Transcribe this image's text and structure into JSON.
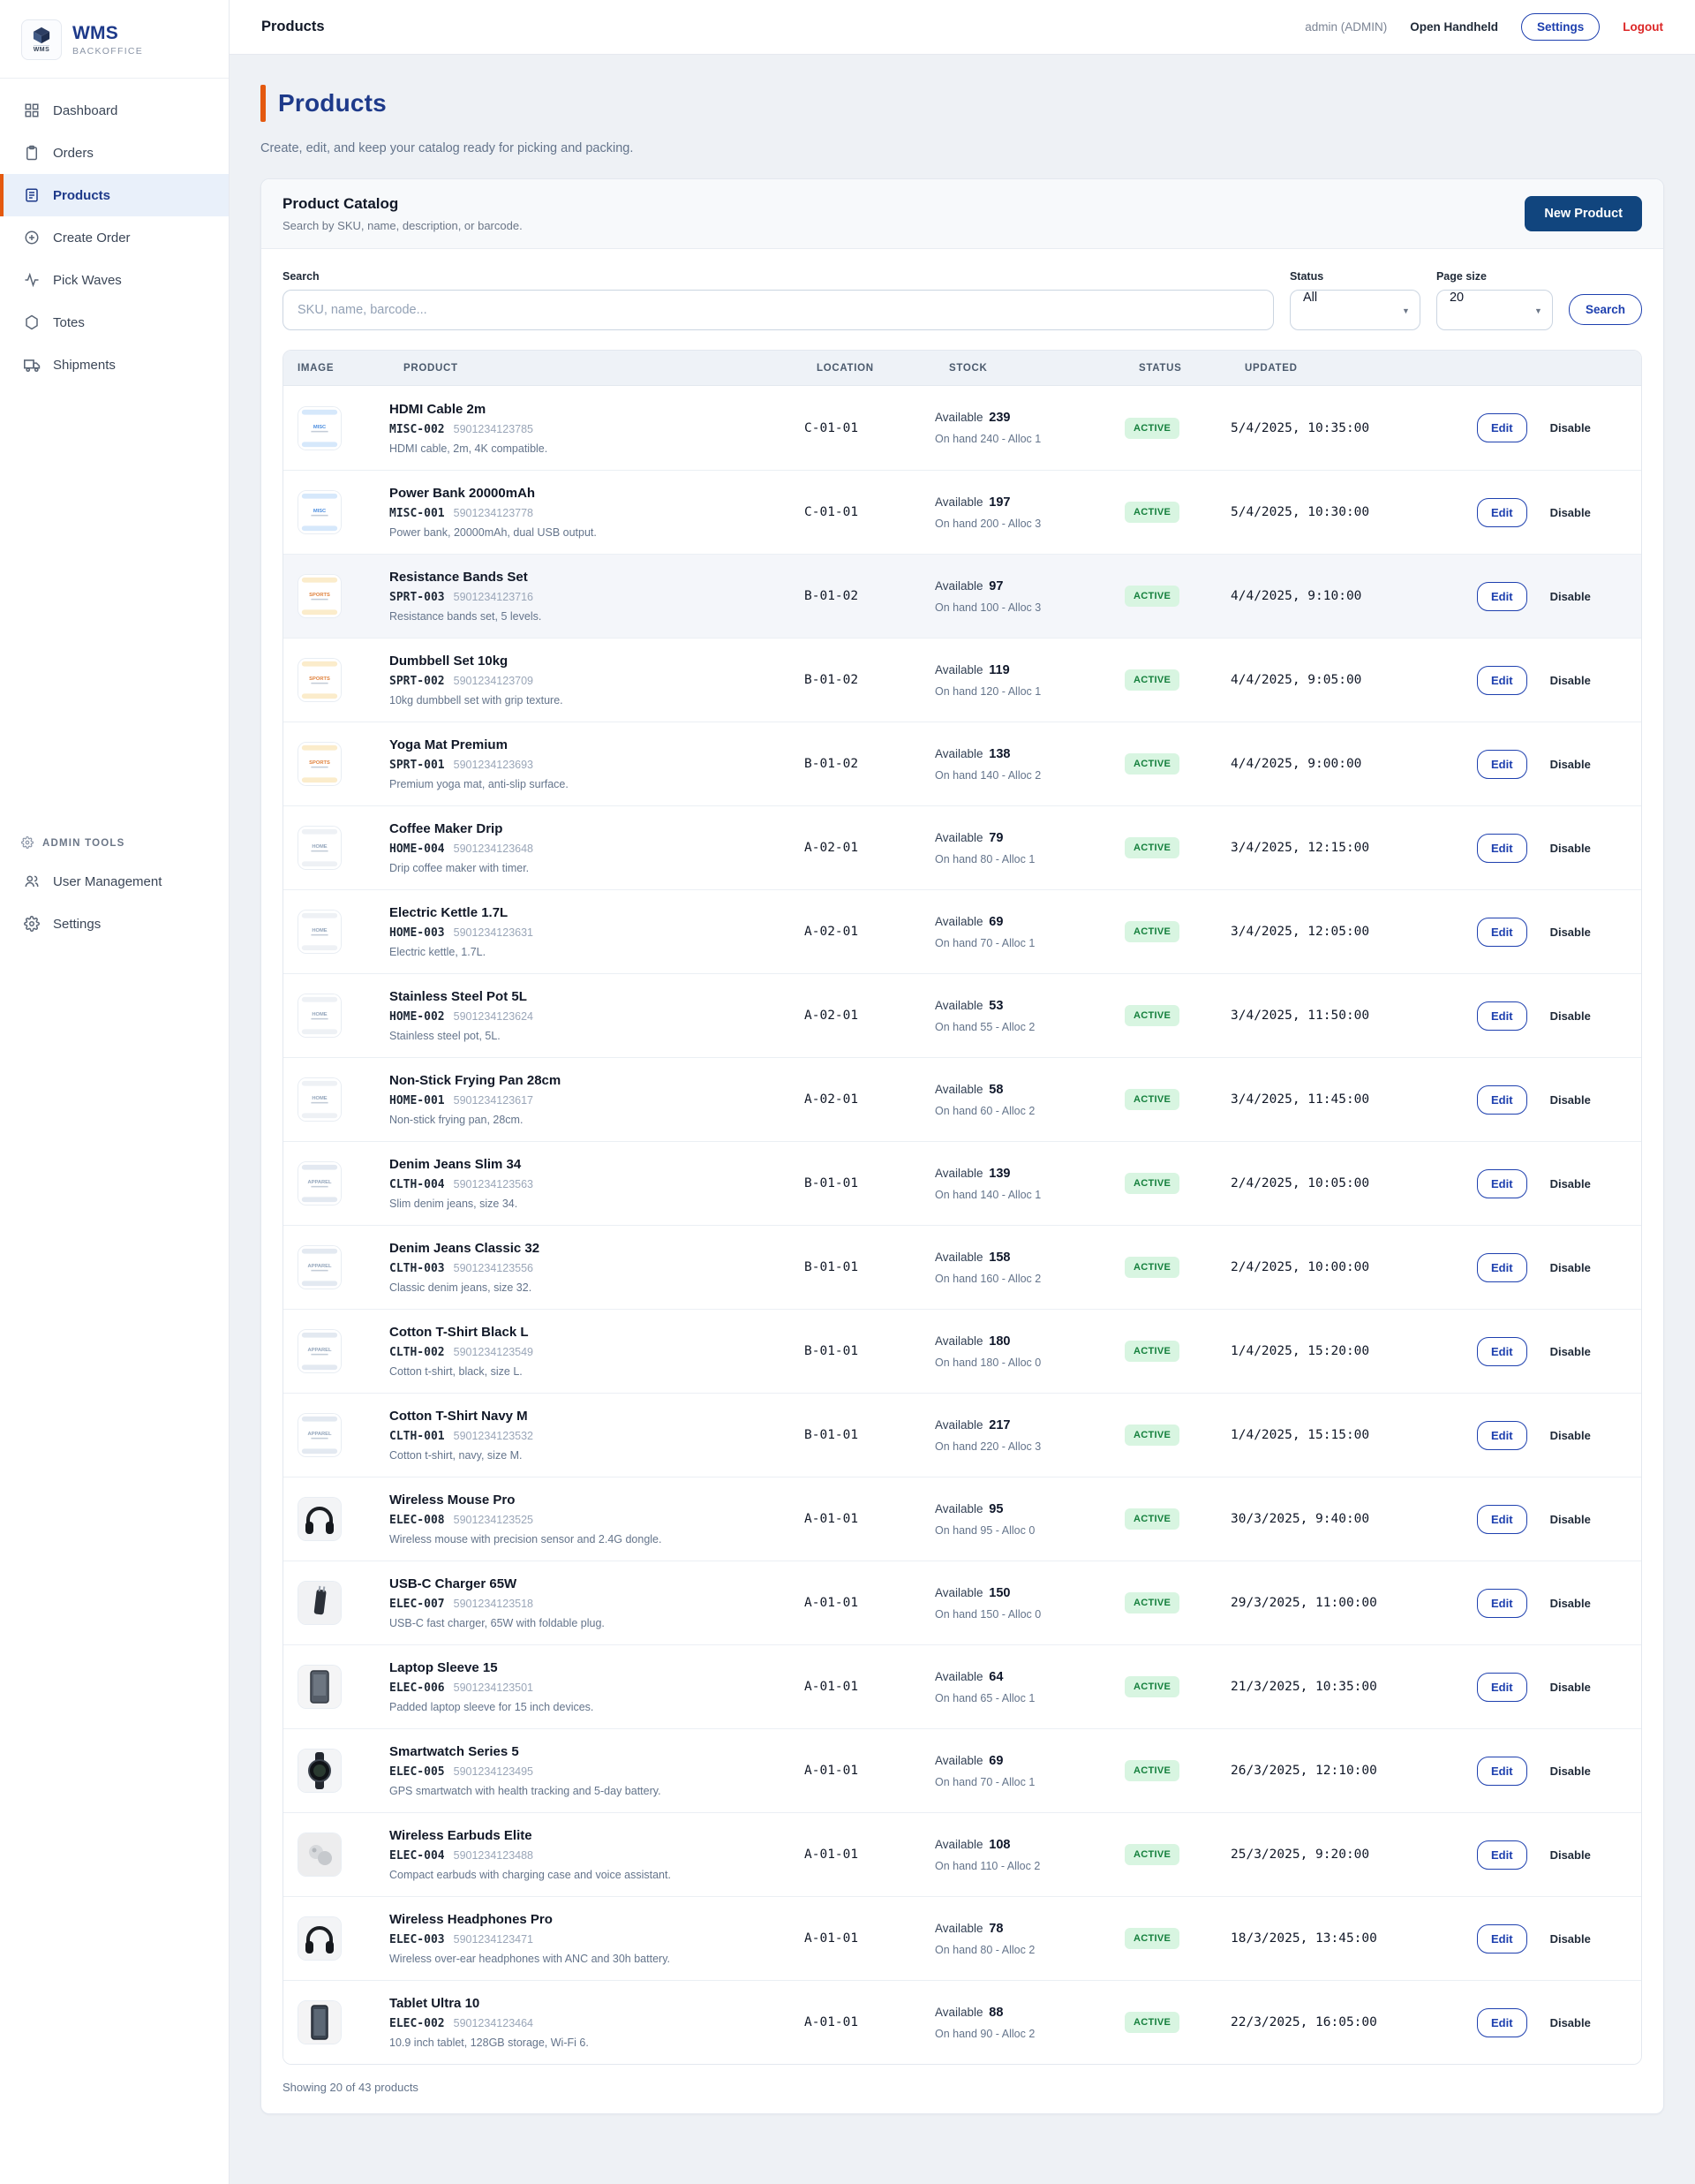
{
  "app": {
    "brand": "WMS",
    "brand_sub": "BACKOFFICE",
    "brand_icon_label": "WMS"
  },
  "topbar": {
    "title": "Products",
    "user": "admin (ADMIN)",
    "open_handheld": "Open Handheld",
    "settings": "Settings",
    "logout": "Logout"
  },
  "sidebar": {
    "items": [
      {
        "label": "Dashboard",
        "icon": "grid",
        "active": false
      },
      {
        "label": "Orders",
        "icon": "clipboard",
        "active": false
      },
      {
        "label": "Products",
        "icon": "document",
        "active": true
      },
      {
        "label": "Create Order",
        "icon": "plus-circle",
        "active": false
      },
      {
        "label": "Pick Waves",
        "icon": "activity",
        "active": false
      },
      {
        "label": "Totes",
        "icon": "hexagon",
        "active": false
      },
      {
        "label": "Shipments",
        "icon": "truck",
        "active": false
      }
    ],
    "admin_section_label": "ADMIN TOOLS",
    "admin_items": [
      {
        "label": "User Management",
        "icon": "users",
        "active": false
      },
      {
        "label": "Settings",
        "icon": "gear",
        "active": false
      }
    ]
  },
  "page": {
    "title": "Products",
    "subtitle": "Create, edit, and keep your catalog ready for picking and packing."
  },
  "catalog": {
    "title": "Product Catalog",
    "subtitle": "Search by SKU, name, description, or barcode.",
    "new_product_button": "New Product",
    "filters": {
      "search_label": "Search",
      "search_placeholder": "SKU, name, barcode...",
      "status_label": "Status",
      "status_value": "All",
      "page_size_label": "Page size",
      "page_size_value": "20",
      "search_button": "Search"
    },
    "columns": [
      "IMAGE",
      "PRODUCT",
      "LOCATION",
      "STOCK",
      "STATUS",
      "UPDATED"
    ],
    "stock_labels": {
      "available": "Available",
      "on_hand": "On hand",
      "alloc": "Alloc"
    },
    "actions": {
      "edit": "Edit",
      "disable": "Disable"
    },
    "footer": "Showing 20 of 43 products"
  },
  "colors": {
    "accent_orange": "#e4590f",
    "brand_blue": "#1e3a8a",
    "primary_button_blue": "#11457e",
    "active_badge_bg": "#d8f5e1",
    "active_badge_text": "#15803d",
    "logout_red": "#dc2626"
  },
  "products": [
    {
      "name": "HDMI Cable 2m",
      "sku": "MISC-002",
      "barcode": "5901234123785",
      "description": "HDMI cable, 2m, 4K compatible.",
      "location": "C-01-01",
      "available": "239",
      "on_hand": "240",
      "alloc": "1",
      "status": "ACTIVE",
      "updated": "5/4/2025, 10:35:00",
      "thumb": "misc",
      "thumb_label": "MISC",
      "highlighted": false
    },
    {
      "name": "Power Bank 20000mAh",
      "sku": "MISC-001",
      "barcode": "5901234123778",
      "description": "Power bank, 20000mAh, dual USB output.",
      "location": "C-01-01",
      "available": "197",
      "on_hand": "200",
      "alloc": "3",
      "status": "ACTIVE",
      "updated": "5/4/2025, 10:30:00",
      "thumb": "misc",
      "thumb_label": "MISC",
      "highlighted": false
    },
    {
      "name": "Resistance Bands Set",
      "sku": "SPRT-003",
      "barcode": "5901234123716",
      "description": "Resistance bands set, 5 levels.",
      "location": "B-01-02",
      "available": "97",
      "on_hand": "100",
      "alloc": "3",
      "status": "ACTIVE",
      "updated": "4/4/2025, 9:10:00",
      "thumb": "sprt",
      "thumb_label": "SPORTS",
      "highlighted": true
    },
    {
      "name": "Dumbbell Set 10kg",
      "sku": "SPRT-002",
      "barcode": "5901234123709",
      "description": "10kg dumbbell set with grip texture.",
      "location": "B-01-02",
      "available": "119",
      "on_hand": "120",
      "alloc": "1",
      "status": "ACTIVE",
      "updated": "4/4/2025, 9:05:00",
      "thumb": "sprt",
      "thumb_label": "SPORTS",
      "highlighted": false
    },
    {
      "name": "Yoga Mat Premium",
      "sku": "SPRT-001",
      "barcode": "5901234123693",
      "description": "Premium yoga mat, anti-slip surface.",
      "location": "B-01-02",
      "available": "138",
      "on_hand": "140",
      "alloc": "2",
      "status": "ACTIVE",
      "updated": "4/4/2025, 9:00:00",
      "thumb": "sprt",
      "thumb_label": "SPORTS",
      "highlighted": false
    },
    {
      "name": "Coffee Maker Drip",
      "sku": "HOME-004",
      "barcode": "5901234123648",
      "description": "Drip coffee maker with timer.",
      "location": "A-02-01",
      "available": "79",
      "on_hand": "80",
      "alloc": "1",
      "status": "ACTIVE",
      "updated": "3/4/2025, 12:15:00",
      "thumb": "home",
      "thumb_label": "HOME",
      "highlighted": false
    },
    {
      "name": "Electric Kettle 1.7L",
      "sku": "HOME-003",
      "barcode": "5901234123631",
      "description": "Electric kettle, 1.7L.",
      "location": "A-02-01",
      "available": "69",
      "on_hand": "70",
      "alloc": "1",
      "status": "ACTIVE",
      "updated": "3/4/2025, 12:05:00",
      "thumb": "home",
      "thumb_label": "HOME",
      "highlighted": false
    },
    {
      "name": "Stainless Steel Pot 5L",
      "sku": "HOME-002",
      "barcode": "5901234123624",
      "description": "Stainless steel pot, 5L.",
      "location": "A-02-01",
      "available": "53",
      "on_hand": "55",
      "alloc": "2",
      "status": "ACTIVE",
      "updated": "3/4/2025, 11:50:00",
      "thumb": "home",
      "thumb_label": "HOME",
      "highlighted": false
    },
    {
      "name": "Non-Stick Frying Pan 28cm",
      "sku": "HOME-001",
      "barcode": "5901234123617",
      "description": "Non-stick frying pan, 28cm.",
      "location": "A-02-01",
      "available": "58",
      "on_hand": "60",
      "alloc": "2",
      "status": "ACTIVE",
      "updated": "3/4/2025, 11:45:00",
      "thumb": "home",
      "thumb_label": "HOME",
      "highlighted": false
    },
    {
      "name": "Denim Jeans Slim 34",
      "sku": "CLTH-004",
      "barcode": "5901234123563",
      "description": "Slim denim jeans, size 34.",
      "location": "B-01-01",
      "available": "139",
      "on_hand": "140",
      "alloc": "1",
      "status": "ACTIVE",
      "updated": "2/4/2025, 10:05:00",
      "thumb": "clth",
      "thumb_label": "APPAREL",
      "highlighted": false
    },
    {
      "name": "Denim Jeans Classic 32",
      "sku": "CLTH-003",
      "barcode": "5901234123556",
      "description": "Classic denim jeans, size 32.",
      "location": "B-01-01",
      "available": "158",
      "on_hand": "160",
      "alloc": "2",
      "status": "ACTIVE",
      "updated": "2/4/2025, 10:00:00",
      "thumb": "clth",
      "thumb_label": "APPAREL",
      "highlighted": false
    },
    {
      "name": "Cotton T-Shirt Black L",
      "sku": "CLTH-002",
      "barcode": "5901234123549",
      "description": "Cotton t-shirt, black, size L.",
      "location": "B-01-01",
      "available": "180",
      "on_hand": "180",
      "alloc": "0",
      "status": "ACTIVE",
      "updated": "1/4/2025, 15:20:00",
      "thumb": "clth",
      "thumb_label": "APPAREL",
      "highlighted": false
    },
    {
      "name": "Cotton T-Shirt Navy M",
      "sku": "CLTH-001",
      "barcode": "5901234123532",
      "description": "Cotton t-shirt, navy, size M.",
      "location": "B-01-01",
      "available": "217",
      "on_hand": "220",
      "alloc": "3",
      "status": "ACTIVE",
      "updated": "1/4/2025, 15:15:00",
      "thumb": "clth",
      "thumb_label": "APPAREL",
      "highlighted": false
    },
    {
      "name": "Wireless Mouse Pro",
      "sku": "ELEC-008",
      "barcode": "5901234123525",
      "description": "Wireless mouse with precision sensor and 2.4G dongle.",
      "location": "A-01-01",
      "available": "95",
      "on_hand": "95",
      "alloc": "0",
      "status": "ACTIVE",
      "updated": "30/3/2025, 9:40:00",
      "thumb": "headphones",
      "thumb_label": "",
      "highlighted": false
    },
    {
      "name": "USB-C Charger 65W",
      "sku": "ELEC-007",
      "barcode": "5901234123518",
      "description": "USB-C fast charger, 65W with foldable plug.",
      "location": "A-01-01",
      "available": "150",
      "on_hand": "150",
      "alloc": "0",
      "status": "ACTIVE",
      "updated": "29/3/2025, 11:00:00",
      "thumb": "charger",
      "thumb_label": "",
      "highlighted": false
    },
    {
      "name": "Laptop Sleeve 15",
      "sku": "ELEC-006",
      "barcode": "5901234123501",
      "description": "Padded laptop sleeve for 15 inch devices.",
      "location": "A-01-01",
      "available": "64",
      "on_hand": "65",
      "alloc": "1",
      "status": "ACTIVE",
      "updated": "21/3/2025, 10:35:00",
      "thumb": "sleeve",
      "thumb_label": "",
      "highlighted": false
    },
    {
      "name": "Smartwatch Series 5",
      "sku": "ELEC-005",
      "barcode": "5901234123495",
      "description": "GPS smartwatch with health tracking and 5-day battery.",
      "location": "A-01-01",
      "available": "69",
      "on_hand": "70",
      "alloc": "1",
      "status": "ACTIVE",
      "updated": "26/3/2025, 12:10:00",
      "thumb": "watch",
      "thumb_label": "",
      "highlighted": false
    },
    {
      "name": "Wireless Earbuds Elite",
      "sku": "ELEC-004",
      "barcode": "5901234123488",
      "description": "Compact earbuds with charging case and voice assistant.",
      "location": "A-01-01",
      "available": "108",
      "on_hand": "110",
      "alloc": "2",
      "status": "ACTIVE",
      "updated": "25/3/2025, 9:20:00",
      "thumb": "earbuds",
      "thumb_label": "",
      "highlighted": false
    },
    {
      "name": "Wireless Headphones Pro",
      "sku": "ELEC-003",
      "barcode": "5901234123471",
      "description": "Wireless over-ear headphones with ANC and 30h battery.",
      "location": "A-01-01",
      "available": "78",
      "on_hand": "80",
      "alloc": "2",
      "status": "ACTIVE",
      "updated": "18/3/2025, 13:45:00",
      "thumb": "headphones",
      "thumb_label": "",
      "highlighted": false
    },
    {
      "name": "Tablet Ultra 10",
      "sku": "ELEC-002",
      "barcode": "5901234123464",
      "description": "10.9 inch tablet, 128GB storage, Wi-Fi 6.",
      "location": "A-01-01",
      "available": "88",
      "on_hand": "90",
      "alloc": "2",
      "status": "ACTIVE",
      "updated": "22/3/2025, 16:05:00",
      "thumb": "tablet",
      "thumb_label": "",
      "highlighted": false
    }
  ]
}
